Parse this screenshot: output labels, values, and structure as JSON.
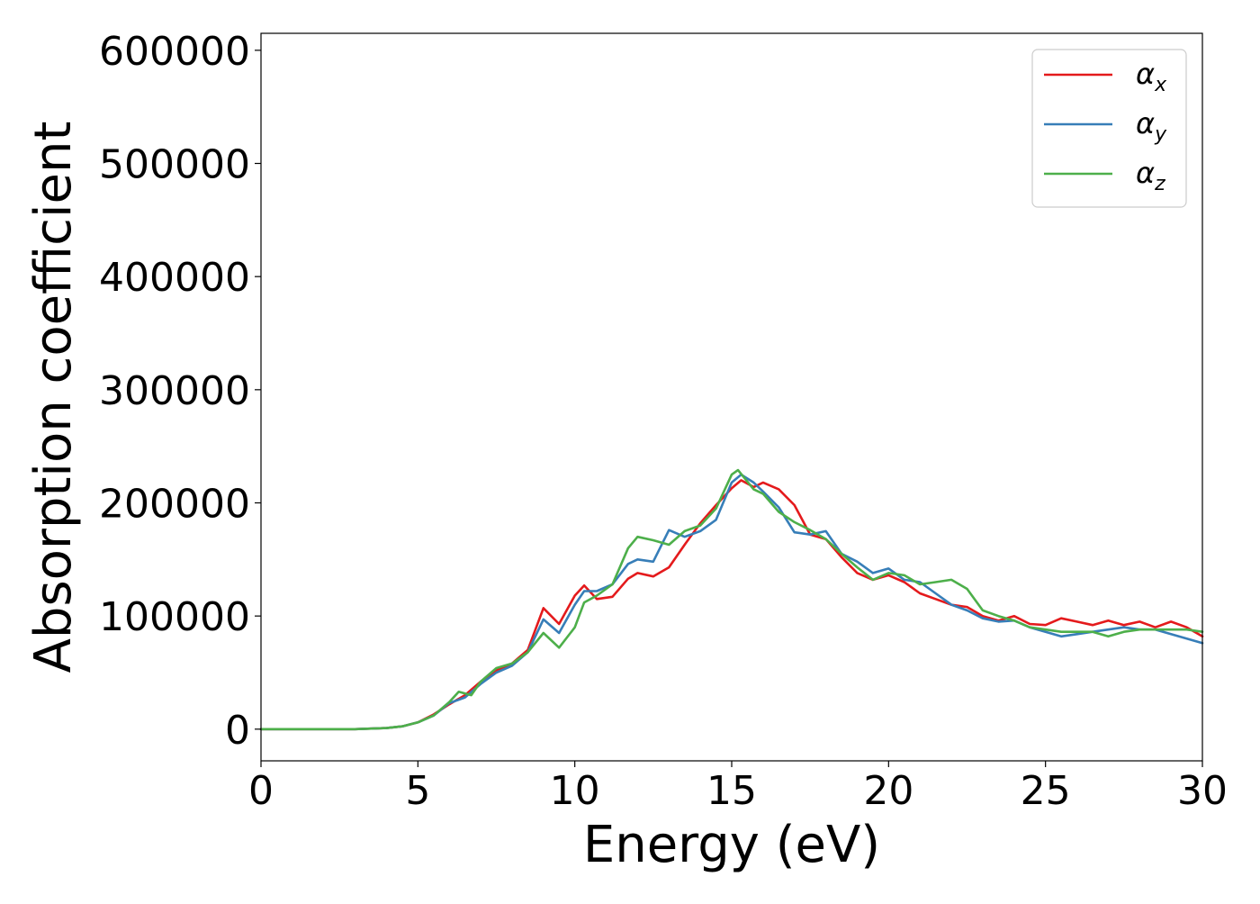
{
  "chart_data": {
    "type": "line",
    "title": "",
    "xlabel": "Energy (eV)",
    "ylabel": "Absorption coefficient",
    "xlim": [
      0,
      30
    ],
    "ylim": [
      -28000,
      615000
    ],
    "xticks": [
      0,
      5,
      10,
      15,
      20,
      25,
      30
    ],
    "yticks": [
      0,
      100000,
      200000,
      300000,
      400000,
      500000,
      600000
    ],
    "grid": false,
    "legend_position": "top-right",
    "series": [
      {
        "name": "α_x",
        "legend_base": "α",
        "legend_sub": "x",
        "color": "#e41a1c",
        "x": [
          0,
          1,
          2,
          3,
          4,
          4.5,
          5,
          5.5,
          6,
          6.5,
          7,
          7.5,
          8,
          8.5,
          9,
          9.5,
          10,
          10.3,
          10.7,
          11.2,
          11.7,
          12,
          12.5,
          13,
          13.5,
          14,
          14.5,
          15,
          15.3,
          15.7,
          16,
          16.5,
          17,
          17.5,
          18,
          18.5,
          19,
          19.5,
          20,
          20.5,
          21,
          21.5,
          22,
          22.5,
          23,
          23.5,
          24,
          24.5,
          25,
          25.5,
          26,
          26.5,
          27,
          27.5,
          28,
          28.5,
          29,
          29.5,
          30
        ],
        "y": [
          0,
          0,
          0,
          0,
          1000,
          2500,
          6000,
          13000,
          22000,
          30000,
          42000,
          52000,
          58000,
          70000,
          107000,
          93000,
          118000,
          127000,
          115000,
          117000,
          133000,
          138000,
          135000,
          143000,
          163000,
          182000,
          198000,
          213000,
          220000,
          214000,
          218000,
          212000,
          198000,
          172000,
          168000,
          152000,
          138000,
          132000,
          136000,
          130000,
          120000,
          115000,
          110000,
          108000,
          100000,
          96000,
          100000,
          93000,
          92000,
          98000,
          95000,
          92000,
          96000,
          92000,
          95000,
          90000,
          95000,
          90000,
          82000
        ]
      },
      {
        "name": "α_y",
        "legend_base": "α",
        "legend_sub": "y",
        "color": "#377eb8",
        "x": [
          0,
          1,
          2,
          3,
          4,
          4.5,
          5,
          5.5,
          6,
          6.5,
          7,
          7.5,
          8,
          8.5,
          9,
          9.5,
          10,
          10.3,
          10.7,
          11.2,
          11.7,
          12,
          12.5,
          13,
          13.5,
          14,
          14.5,
          15,
          15.3,
          15.7,
          16,
          16.5,
          17,
          17.5,
          18,
          18.5,
          19,
          19.5,
          20,
          20.5,
          21,
          21.5,
          22,
          22.5,
          23,
          23.5,
          24,
          24.5,
          25,
          25.5,
          26,
          26.5,
          27,
          27.5,
          28,
          28.5,
          29,
          29.5,
          30
        ],
        "y": [
          0,
          0,
          0,
          0,
          1000,
          2500,
          6000,
          12000,
          23000,
          28000,
          40000,
          50000,
          56000,
          68000,
          97000,
          85000,
          110000,
          122000,
          122000,
          128000,
          146000,
          150000,
          148000,
          176000,
          170000,
          175000,
          185000,
          218000,
          225000,
          218000,
          210000,
          196000,
          174000,
          172000,
          175000,
          155000,
          148000,
          138000,
          142000,
          132000,
          130000,
          120000,
          110000,
          105000,
          98000,
          95000,
          96000,
          90000,
          86000,
          82000,
          84000,
          86000,
          88000,
          90000,
          88000,
          88000,
          84000,
          80000,
          76000
        ]
      },
      {
        "name": "α_z",
        "legend_base": "α",
        "legend_sub": "z",
        "color": "#4daf4a",
        "x": [
          0,
          1,
          2,
          3,
          4,
          4.5,
          5,
          5.5,
          6,
          6.3,
          6.7,
          7,
          7.5,
          8,
          8.5,
          9,
          9.5,
          10,
          10.3,
          10.7,
          11.2,
          11.7,
          12,
          12.5,
          13,
          13.5,
          14,
          14.5,
          15,
          15.2,
          15.7,
          16,
          16.5,
          17,
          17.5,
          18,
          18.5,
          19,
          19.5,
          20,
          20.5,
          21,
          21.5,
          22,
          22.5,
          23,
          23.5,
          24,
          24.5,
          25,
          25.5,
          26,
          26.5,
          27,
          27.5,
          28,
          28.5,
          29,
          29.5,
          30
        ],
        "y": [
          0,
          0,
          0,
          0,
          1000,
          2500,
          6000,
          12000,
          24000,
          33000,
          30000,
          42000,
          54000,
          58000,
          68000,
          85000,
          72000,
          90000,
          112000,
          118000,
          128000,
          160000,
          170000,
          167000,
          163000,
          175000,
          180000,
          195000,
          225000,
          229000,
          212000,
          208000,
          192000,
          183000,
          176000,
          168000,
          155000,
          143000,
          132000,
          138000,
          136000,
          128000,
          130000,
          132000,
          124000,
          105000,
          100000,
          96000,
          90000,
          88000,
          86000,
          86000,
          86000,
          82000,
          86000,
          88000,
          88000,
          88000,
          88000,
          86000
        ]
      }
    ]
  }
}
